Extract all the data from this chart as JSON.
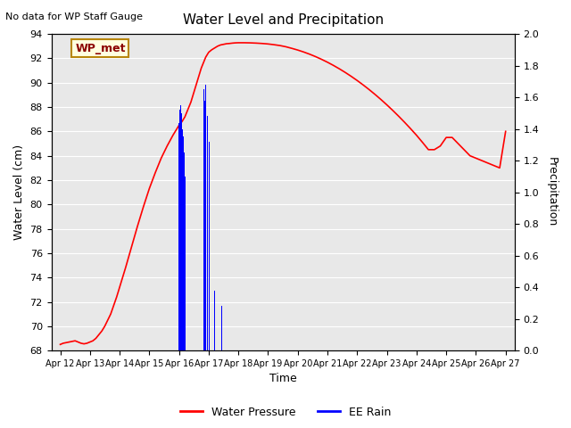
{
  "title": "Water Level and Precipitation",
  "subtitle": "No data for WP Staff Gauge",
  "xlabel": "Time",
  "ylabel_left": "Water Level (cm)",
  "ylabel_right": "Precipitation",
  "legend_label1": "Water Pressure",
  "legend_label2": "EE Rain",
  "annotation": "WP_met",
  "ylim_left": [
    68,
    94
  ],
  "ylim_right": [
    0.0,
    2.0
  ],
  "yticks_left": [
    68,
    70,
    72,
    74,
    76,
    78,
    80,
    82,
    84,
    86,
    88,
    90,
    92,
    94
  ],
  "yticks_right": [
    0.0,
    0.2,
    0.4,
    0.6,
    0.8,
    1.0,
    1.2,
    1.4,
    1.6,
    1.8,
    2.0
  ],
  "x_tick_labels": [
    "Apr 12",
    "Apr 13",
    "Apr 14",
    "Apr 15",
    "Apr 16",
    "Apr 17",
    "Apr 18",
    "Apr 19",
    "Apr 20",
    "Apr 21",
    "Apr 22",
    "Apr 23",
    "Apr 24",
    "Apr 25",
    "Apr 26",
    "Apr 27"
  ],
  "plot_bg_color": "#e8e8e8",
  "line_color": "red",
  "bar_color": "blue",
  "water_x": [
    0,
    0.1,
    0.2,
    0.3,
    0.4,
    0.5,
    0.6,
    0.7,
    0.8,
    0.9,
    1.0,
    1.1,
    1.2,
    1.3,
    1.4,
    1.5,
    1.6,
    1.7,
    1.8,
    1.9,
    2.0,
    2.2,
    2.4,
    2.6,
    2.8,
    3.0,
    3.2,
    3.4,
    3.6,
    3.8,
    4.0,
    4.1,
    4.15,
    4.2,
    4.25,
    4.3,
    4.35,
    4.4,
    4.45,
    4.5,
    4.55,
    4.6,
    4.65,
    4.7,
    4.75,
    4.8,
    4.85,
    4.9,
    4.95,
    5.0,
    5.1,
    5.2,
    5.3,
    5.4,
    5.5,
    5.6,
    5.7,
    5.8,
    5.9,
    6.0,
    6.2,
    6.4,
    6.6,
    6.8,
    7.0,
    7.2,
    7.4,
    7.6,
    7.8,
    8.0,
    8.2,
    8.4,
    8.6,
    8.8,
    9.0,
    9.2,
    9.4,
    9.6,
    9.8,
    10.0,
    10.2,
    10.4,
    10.5,
    10.6,
    10.8,
    11.0,
    11.2,
    11.4,
    11.6,
    11.8,
    12.0,
    12.2,
    12.4,
    12.6,
    12.8,
    13.0,
    13.2,
    13.4,
    13.6,
    13.8,
    14.0,
    14.2,
    14.4,
    14.6,
    14.8,
    15.0
  ],
  "water_y": [
    68.5,
    68.6,
    68.65,
    68.7,
    68.75,
    68.8,
    68.7,
    68.6,
    68.55,
    68.6,
    68.7,
    68.8,
    69.0,
    69.3,
    69.6,
    70.0,
    70.5,
    71.0,
    71.7,
    72.4,
    73.2,
    74.8,
    76.5,
    78.2,
    79.8,
    81.3,
    82.6,
    83.8,
    84.8,
    85.7,
    86.5,
    86.8,
    87.0,
    87.2,
    87.5,
    87.8,
    88.1,
    88.4,
    88.8,
    89.2,
    89.6,
    90.0,
    90.4,
    90.8,
    91.2,
    91.5,
    91.8,
    92.1,
    92.3,
    92.5,
    92.7,
    92.85,
    93.0,
    93.1,
    93.15,
    93.2,
    93.22,
    93.25,
    93.27,
    93.28,
    93.28,
    93.27,
    93.25,
    93.22,
    93.18,
    93.12,
    93.05,
    92.95,
    92.82,
    92.68,
    92.52,
    92.34,
    92.14,
    91.92,
    91.68,
    91.42,
    91.14,
    90.84,
    90.52,
    90.18,
    89.82,
    89.44,
    89.24,
    89.04,
    88.62,
    88.18,
    87.72,
    87.24,
    86.74,
    86.22,
    85.68,
    85.1,
    84.5,
    84.5,
    84.8,
    85.5,
    85.5,
    85.0,
    84.5,
    84.0,
    83.8,
    83.6,
    83.4,
    83.2,
    83.0,
    86.0
  ],
  "rain_x": [
    4.0,
    4.02,
    4.04,
    4.06,
    4.08,
    4.1,
    4.12,
    4.14,
    4.16,
    4.18,
    4.2,
    4.25,
    4.28,
    4.82,
    4.84,
    4.86,
    4.88,
    4.9,
    4.92,
    4.94,
    4.96,
    4.98,
    5.0,
    5.02,
    5.04,
    5.1,
    5.2,
    5.4,
    5.42,
    5.44
  ],
  "rain_values": [
    1.44,
    1.52,
    1.6,
    1.55,
    1.5,
    1.45,
    1.4,
    1.35,
    1.3,
    1.25,
    1.1,
    0.8,
    0.4,
    1.72,
    1.65,
    1.58,
    1.52,
    1.68,
    1.62,
    1.55,
    1.48,
    1.42,
    1.38,
    1.32,
    1.27,
    0.95,
    0.38,
    0.38,
    0.32,
    0.28
  ],
  "bar_width": 0.015
}
